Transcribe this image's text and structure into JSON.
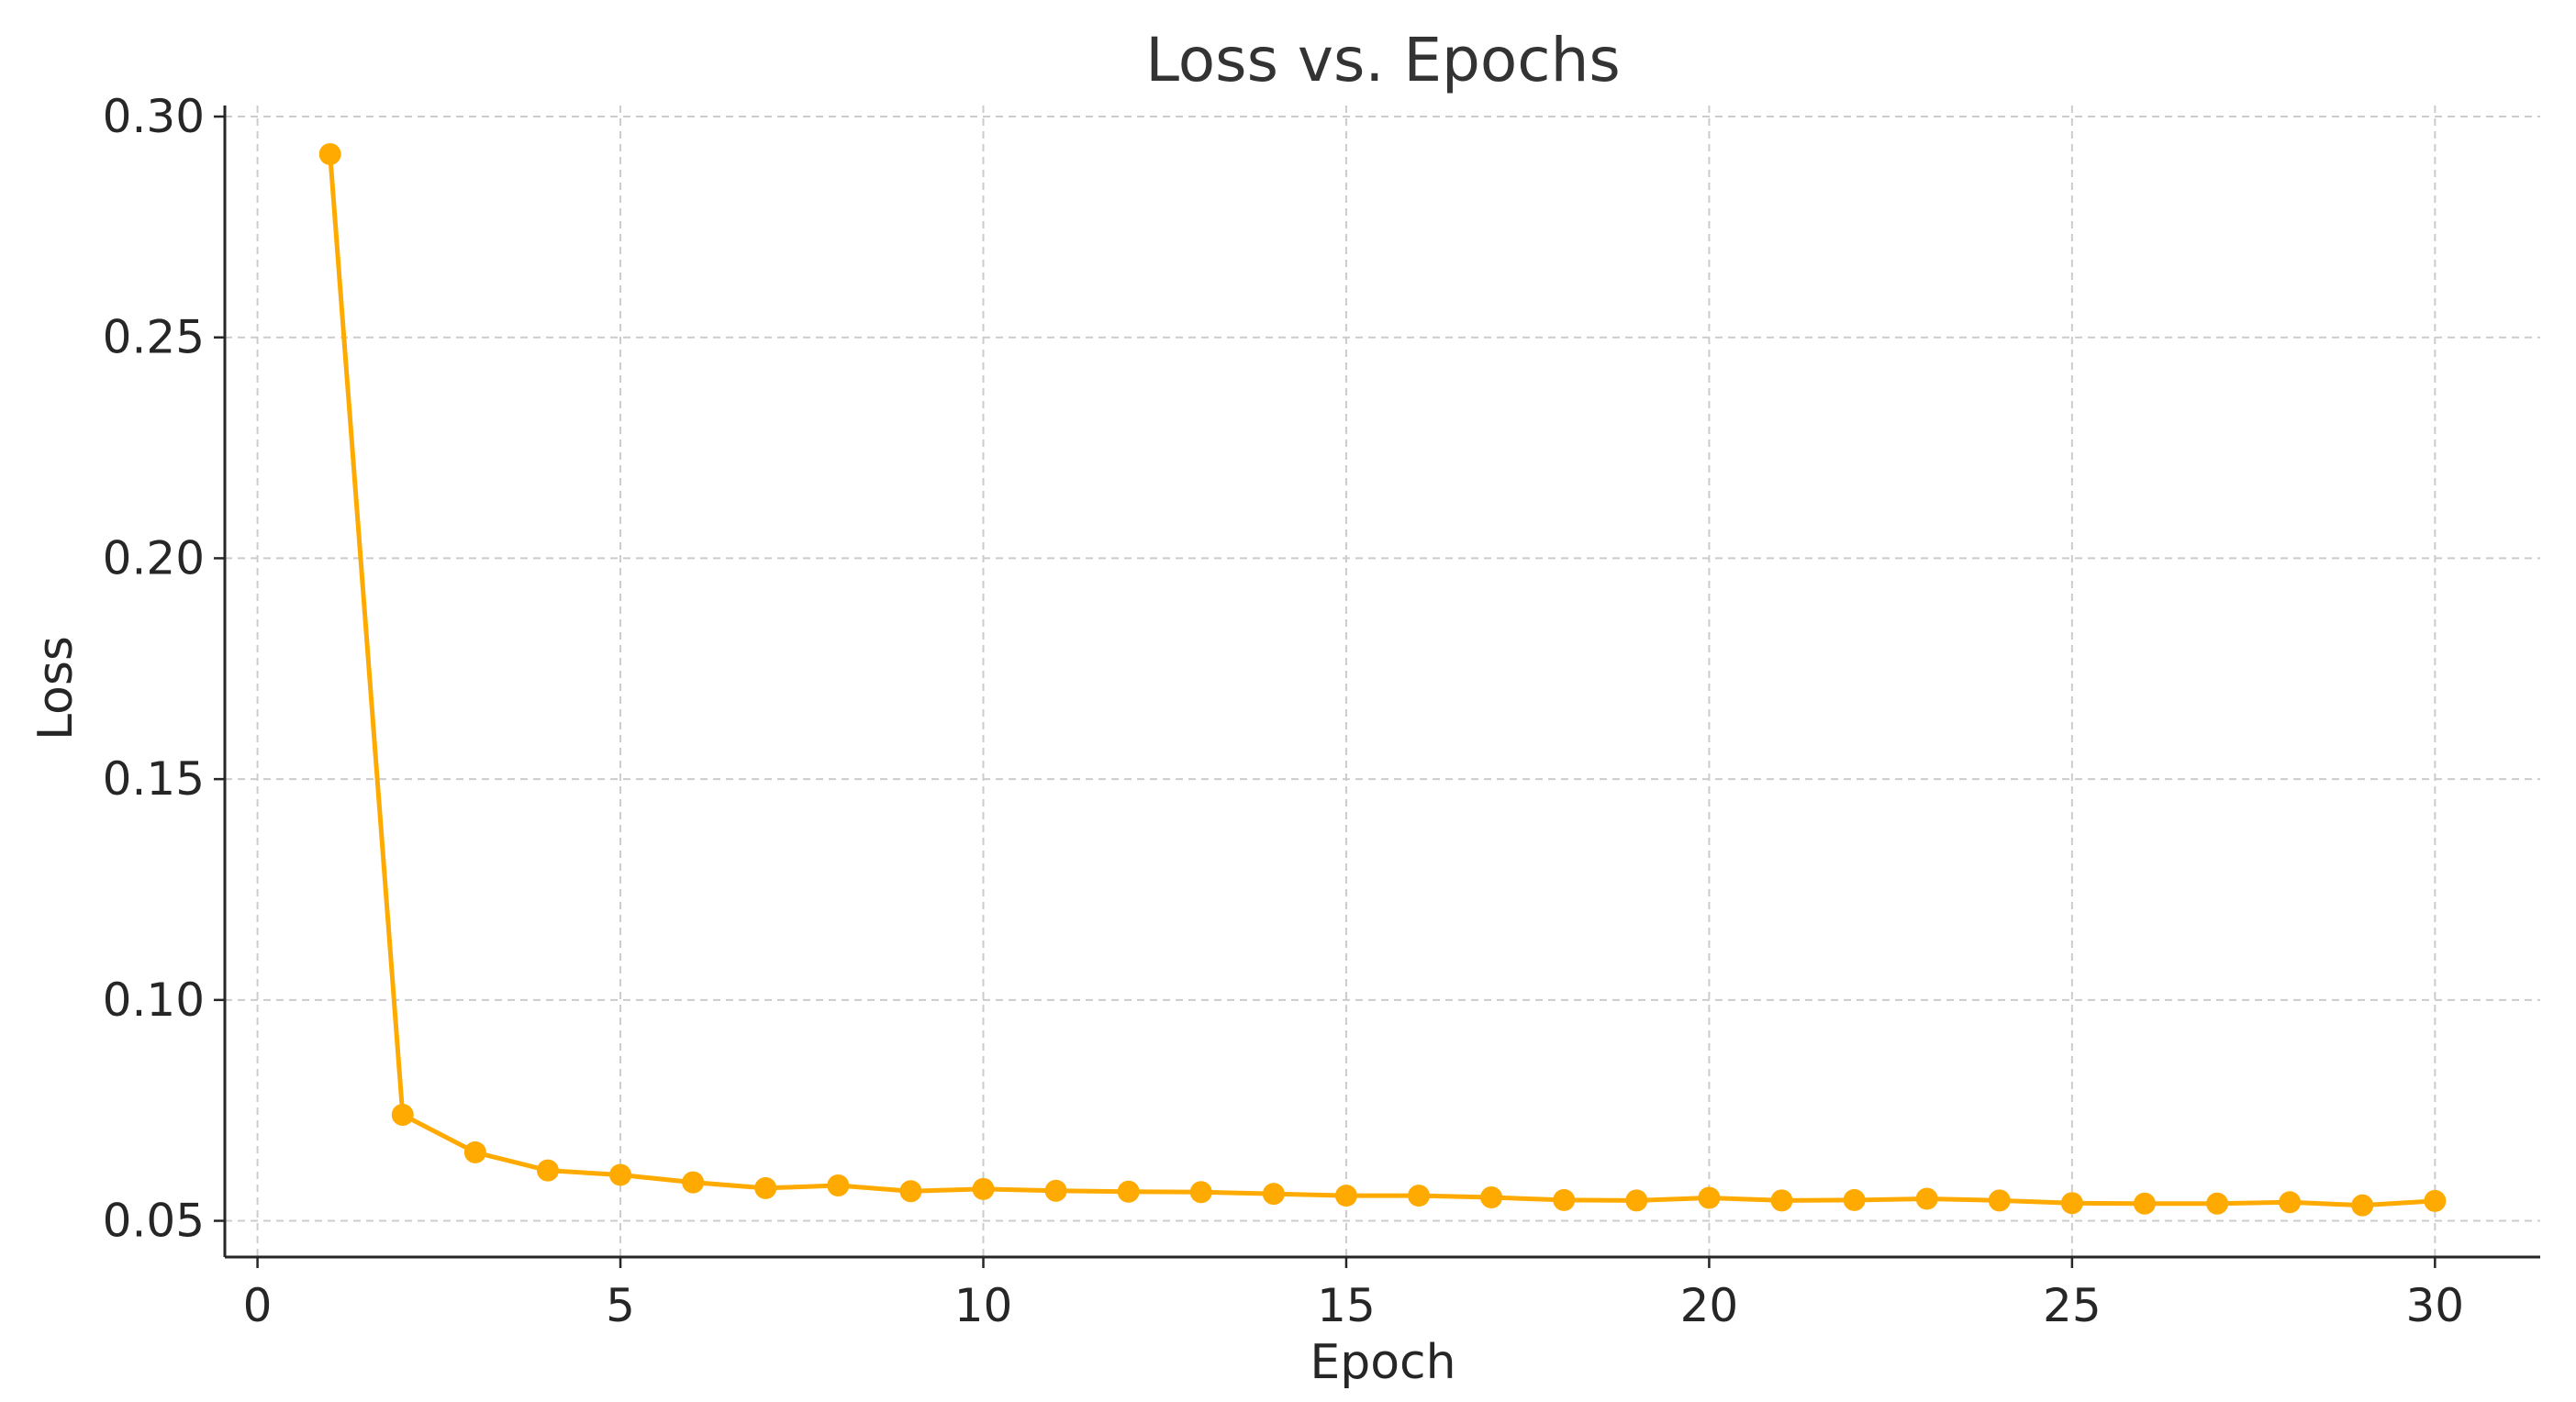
{
  "chart_data": {
    "type": "line",
    "title": "Loss vs. Epochs",
    "xlabel": "Epoch",
    "ylabel": "Loss",
    "xlim": [
      -0.45,
      31.45
    ],
    "ylim": [
      0.0418,
      0.3025
    ],
    "xticks": [
      0,
      5,
      10,
      15,
      20,
      25,
      30
    ],
    "xtick_labels": [
      "0",
      "5",
      "10",
      "15",
      "20",
      "25",
      "30"
    ],
    "yticks": [
      0.05,
      0.1,
      0.15,
      0.2,
      0.25,
      0.3
    ],
    "ytick_labels": [
      "0.05",
      "0.10",
      "0.15",
      "0.20",
      "0.25",
      "0.30"
    ],
    "grid": true,
    "line_color": "#ffaa00",
    "x": [
      1,
      2,
      3,
      4,
      5,
      6,
      7,
      8,
      9,
      10,
      11,
      12,
      13,
      14,
      15,
      16,
      17,
      18,
      19,
      20,
      21,
      22,
      23,
      24,
      25,
      26,
      27,
      28,
      29,
      30
    ],
    "series": [
      {
        "values": [
          0.2915,
          0.074,
          0.0655,
          0.0614,
          0.0604,
          0.0587,
          0.0574,
          0.058,
          0.0567,
          0.0572,
          0.0568,
          0.0566,
          0.0565,
          0.0561,
          0.0557,
          0.0557,
          0.0553,
          0.0547,
          0.0546,
          0.0552,
          0.0546,
          0.0547,
          0.055,
          0.0546,
          0.054,
          0.0539,
          0.0539,
          0.0542,
          0.0535,
          0.0545
        ]
      }
    ]
  }
}
